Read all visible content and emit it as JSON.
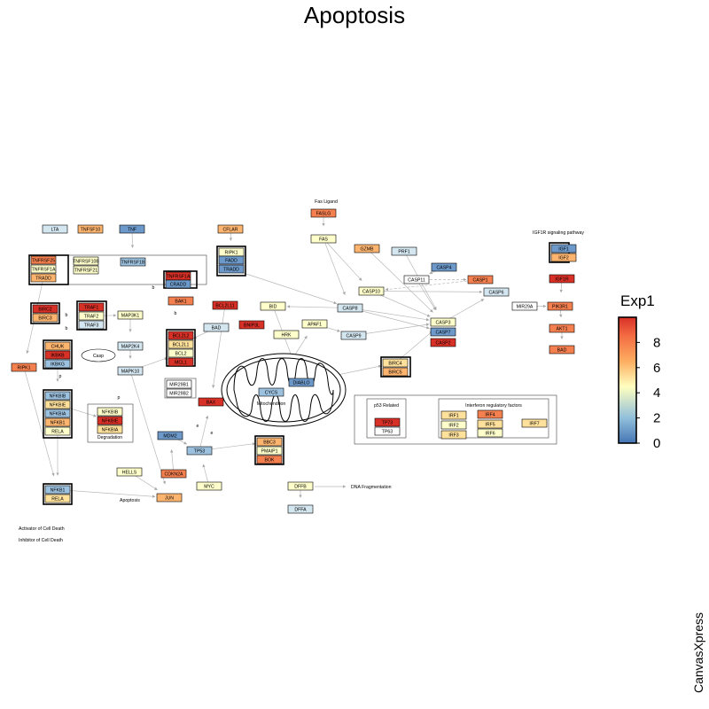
{
  "title": "Apoptosis",
  "colors": {
    "c0": "#6c99c9",
    "c1": "#9cc1df",
    "c2": "#d4e6f0",
    "c3": "#ffffcc",
    "c4": "#ffe19c",
    "c5": "#fdb46f",
    "c6": "#f47f4f",
    "c7": "#d73027",
    "mir": "#a020a0",
    "white": "#ffffff"
  },
  "legend": {
    "title": "Exp1",
    "ticks": [
      "0",
      "2",
      "4",
      "6",
      "8"
    ],
    "range": [
      0,
      10
    ]
  },
  "watermark": "CanvasXpress",
  "labels": [
    {
      "id": "l_fasligand",
      "text": "Fas Ligand"
    },
    {
      "id": "l_igf1r",
      "text": "IGF1R signaling pathway"
    },
    {
      "id": "l_casp",
      "text": "Casp"
    },
    {
      "id": "l_mito",
      "text": "Mitochondrion"
    },
    {
      "id": "l_degr",
      "text": "Degradation"
    },
    {
      "id": "l_p53",
      "text": "p53 Related"
    },
    {
      "id": "l_irf",
      "text": "Interferon regulatory factors"
    },
    {
      "id": "l_dnafrag",
      "text": "DNA Fragmentation"
    },
    {
      "id": "l_apop",
      "text": "Apoptosis"
    },
    {
      "id": "l_act",
      "text": "Activator of Cell Death"
    },
    {
      "id": "l_inh",
      "text": "Inhibitor of Cell Death"
    },
    {
      "id": "l_b1",
      "text": "b"
    },
    {
      "id": "l_b2",
      "text": "b"
    },
    {
      "id": "l_b3",
      "text": "b"
    },
    {
      "id": "l_b4",
      "text": "b"
    },
    {
      "id": "l_p1",
      "text": "p"
    },
    {
      "id": "l_p2",
      "text": "p"
    },
    {
      "id": "l_e1",
      "text": "e"
    },
    {
      "id": "l_e2",
      "text": "e"
    }
  ],
  "nodes": [
    {
      "id": "LTA",
      "label": "LTA",
      "color": "c2"
    },
    {
      "id": "TNFSF10",
      "label": "TNFSF10",
      "color": "c5"
    },
    {
      "id": "TNF",
      "label": "TNF",
      "color": "c0"
    },
    {
      "id": "TNFRSF25",
      "label": "TNFRSF25",
      "color": "c6"
    },
    {
      "id": "TNFRSF1A_a",
      "label": "TNFRSF1A",
      "color": "c3"
    },
    {
      "id": "TRADD_a",
      "label": "TRADD",
      "color": "c5"
    },
    {
      "id": "TNFRSF10B",
      "label": "TNFRSF10B",
      "color": "c3"
    },
    {
      "id": "TNFRSF21",
      "label": "TNFRSF21",
      "color": "c3"
    },
    {
      "id": "TNFRSF1B",
      "label": "TNFRSF1B",
      "color": "c1"
    },
    {
      "id": "CFLAR",
      "label": "CFLAR",
      "color": "c5"
    },
    {
      "id": "RIPK1_b",
      "label": "RIPK1",
      "color": "c3"
    },
    {
      "id": "FADD",
      "label": "FADD",
      "color": "c0"
    },
    {
      "id": "TRADD_b",
      "label": "TRADD",
      "color": "c0"
    },
    {
      "id": "FASLG",
      "label": "FASLG",
      "color": "c6"
    },
    {
      "id": "FAS",
      "label": "FAS",
      "color": "c3"
    },
    {
      "id": "GZMB",
      "label": "GZMB",
      "color": "c5"
    },
    {
      "id": "PRF1",
      "label": "PRF1",
      "color": "c2"
    },
    {
      "id": "CASP4",
      "label": "CASP4",
      "color": "c0"
    },
    {
      "id": "CASP11",
      "label": "CASP11",
      "color": "white"
    },
    {
      "id": "CASP1",
      "label": "CASP1",
      "color": "c6"
    },
    {
      "id": "CASP10",
      "label": "CASP10",
      "color": "c3"
    },
    {
      "id": "CASP6",
      "label": "CASP6",
      "color": "c2"
    },
    {
      "id": "IGF1",
      "label": "IGF1",
      "color": "c0"
    },
    {
      "id": "IGF2",
      "label": "IGF2",
      "color": "c5"
    },
    {
      "id": "IGF1R",
      "label": "IGF1R",
      "color": "c7"
    },
    {
      "id": "MIR29A",
      "label": "MIR29A",
      "color": "white",
      "text": "mir"
    },
    {
      "id": "PIK3R1",
      "label": "PIK3R1",
      "color": "c6"
    },
    {
      "id": "AKT1",
      "label": "AKT1",
      "color": "c6"
    },
    {
      "id": "BAD_r",
      "label": "BAD",
      "color": "c6"
    },
    {
      "id": "TNFRSF1A_c",
      "label": "TNFRSF1A",
      "color": "c7"
    },
    {
      "id": "CRADD",
      "label": "CRADD",
      "color": "c0"
    },
    {
      "id": "BAK1",
      "label": "BAK1",
      "color": "c6"
    },
    {
      "id": "BIRC2",
      "label": "BIRC2",
      "color": "c7"
    },
    {
      "id": "BIRC3",
      "label": "BIRC3",
      "color": "c5"
    },
    {
      "id": "TRAF1",
      "label": "TRAF1",
      "color": "c7"
    },
    {
      "id": "TRAF2",
      "label": "TRAF2",
      "color": "c3"
    },
    {
      "id": "TRAF3",
      "label": "TRAF3",
      "color": "c2"
    },
    {
      "id": "MAP3K1",
      "label": "MAP3K1",
      "color": "c3"
    },
    {
      "id": "BCL2L11",
      "label": "BCL2L11",
      "color": "c7"
    },
    {
      "id": "BID",
      "label": "BID",
      "color": "c3"
    },
    {
      "id": "CASP8",
      "label": "CASP8",
      "color": "c2"
    },
    {
      "id": "BNIP3L",
      "label": "BNIP3L",
      "color": "c7"
    },
    {
      "id": "APAF1",
      "label": "APAF1",
      "color": "c3"
    },
    {
      "id": "HRK",
      "label": "HRK",
      "color": "c3"
    },
    {
      "id": "CASP3",
      "label": "CASP3",
      "color": "c3"
    },
    {
      "id": "CASP7",
      "label": "CASP7",
      "color": "c0"
    },
    {
      "id": "CASP2",
      "label": "CASP2",
      "color": "c7"
    },
    {
      "id": "CASP9",
      "label": "CASP9",
      "color": "c2"
    },
    {
      "id": "CHUK",
      "label": "CHUK",
      "color": "c5"
    },
    {
      "id": "IKBKB",
      "label": "IKBKB",
      "color": "c7"
    },
    {
      "id": "IKBKG",
      "label": "IKBKG",
      "color": "c1"
    },
    {
      "id": "MAP2K4",
      "label": "MAP2K4",
      "color": "c2"
    },
    {
      "id": "MAPK10",
      "label": "MAPK10",
      "color": "c2"
    },
    {
      "id": "BAD_m",
      "label": "BAD",
      "color": "c2"
    },
    {
      "id": "BCL2L2",
      "label": "BCL2L2",
      "color": "c7"
    },
    {
      "id": "BCL2L1",
      "label": "BCL2L1",
      "color": "c4"
    },
    {
      "id": "BCL2",
      "label": "BCL2",
      "color": "c3"
    },
    {
      "id": "MCL1",
      "label": "MCL1",
      "color": "c7"
    },
    {
      "id": "RIPK1_l",
      "label": "RIPK1",
      "color": "c6"
    },
    {
      "id": "BIRC4",
      "label": "BIRC4",
      "color": "c4"
    },
    {
      "id": "BIRC5",
      "label": "BIRC5",
      "color": "c5"
    },
    {
      "id": "DIABLO",
      "label": "DIABLO",
      "color": "c0"
    },
    {
      "id": "CYCS",
      "label": "CYCS",
      "color": "c1"
    },
    {
      "id": "MIR29B1",
      "label": "MIR29B1",
      "color": "white",
      "text": "mir"
    },
    {
      "id": "MIR29B2",
      "label": "MIR29B2",
      "color": "white",
      "text": "mir"
    },
    {
      "id": "NFKBIB",
      "label": "NFKBIB",
      "color": "c1"
    },
    {
      "id": "NFKBIE",
      "label": "NFKBIE",
      "color": "c4"
    },
    {
      "id": "NFKBIA",
      "label": "NFKBIA",
      "color": "c1"
    },
    {
      "id": "NFKB1_a",
      "label": "NFKB1",
      "color": "c5"
    },
    {
      "id": "RELA_a",
      "label": "RELA",
      "color": "c3"
    },
    {
      "id": "NFKBIB_d",
      "label": "NFKBIB",
      "color": "c3"
    },
    {
      "id": "NFKBIE_d",
      "label": "NFKBIE",
      "color": "c7"
    },
    {
      "id": "NFKBIA_d",
      "label": "NFKBIA",
      "color": "c4"
    },
    {
      "id": "BAX",
      "label": "BAX",
      "color": "c7"
    },
    {
      "id": "TP73",
      "label": "TP73",
      "color": "c7"
    },
    {
      "id": "TP63",
      "label": "TP63",
      "color": "white"
    },
    {
      "id": "IRF1",
      "label": "IRF1",
      "color": "c4"
    },
    {
      "id": "IRF2",
      "label": "IRF2",
      "color": "c3"
    },
    {
      "id": "IRF3",
      "label": "IRF3",
      "color": "c4"
    },
    {
      "id": "IRF4",
      "label": "IRF4",
      "color": "c6"
    },
    {
      "id": "IRF5",
      "label": "IRF5",
      "color": "c4"
    },
    {
      "id": "IRF6",
      "label": "IRF6",
      "color": "c3"
    },
    {
      "id": "IRF7",
      "label": "IRF7",
      "color": "c4"
    },
    {
      "id": "MDM2",
      "label": "MDM2",
      "color": "c0"
    },
    {
      "id": "TP53",
      "label": "TP53",
      "color": "c1"
    },
    {
      "id": "BBC3",
      "label": "BBC3",
      "color": "c5"
    },
    {
      "id": "PMAIP1",
      "label": "PMAIP1",
      "color": "c3"
    },
    {
      "id": "BOK",
      "label": "BOK",
      "color": "c6"
    },
    {
      "id": "CDKN2A",
      "label": "CDKN2A",
      "color": "c6"
    },
    {
      "id": "HELLS",
      "label": "HELLS",
      "color": "c3"
    },
    {
      "id": "MYC",
      "label": "MYC",
      "color": "c3"
    },
    {
      "id": "NFKB1_b",
      "label": "NFKB1",
      "color": "c1"
    },
    {
      "id": "RELA_b",
      "label": "RELA",
      "color": "c4"
    },
    {
      "id": "JUN",
      "label": "JUN",
      "color": "c5"
    },
    {
      "id": "DFFB",
      "label": "DFFB",
      "color": "c3"
    },
    {
      "id": "DFFA",
      "label": "DFFA",
      "color": "c2"
    }
  ]
}
